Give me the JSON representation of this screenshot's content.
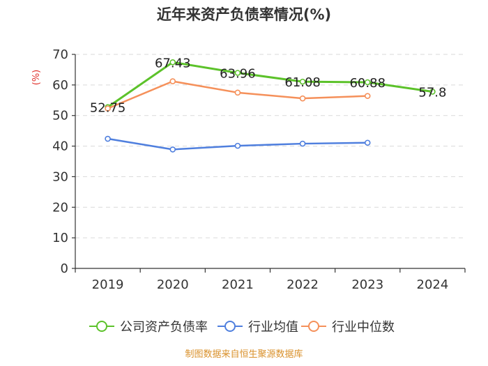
{
  "chart_data": {
    "type": "line",
    "title": "近年来资产负债率情况(%)",
    "ylabel": "(%)",
    "categories": [
      "2019",
      "2020",
      "2021",
      "2022",
      "2023",
      "2024"
    ],
    "ylim": [
      0,
      70
    ],
    "yticks": [
      0,
      10,
      20,
      30,
      40,
      50,
      60,
      70
    ],
    "grid": true,
    "legend_position": "bottom",
    "series": [
      {
        "name": "公司资产负债率",
        "color": "#5cc22a",
        "values": [
          52.75,
          67.43,
          63.96,
          61.08,
          60.88,
          57.8
        ],
        "labels": [
          "52.75",
          "67.43",
          "63.96",
          "61.08",
          "60.88",
          "57.8"
        ]
      },
      {
        "name": "行业均值",
        "color": "#4f7fde",
        "values": [
          42.4,
          38.9,
          40.1,
          40.8,
          41.1,
          null
        ]
      },
      {
        "name": "行业中位数",
        "color": "#f5905a",
        "values": [
          52.3,
          61.2,
          57.5,
          55.6,
          56.4,
          null
        ]
      }
    ]
  },
  "source_text": "制图数据来自恒生聚源数据库"
}
